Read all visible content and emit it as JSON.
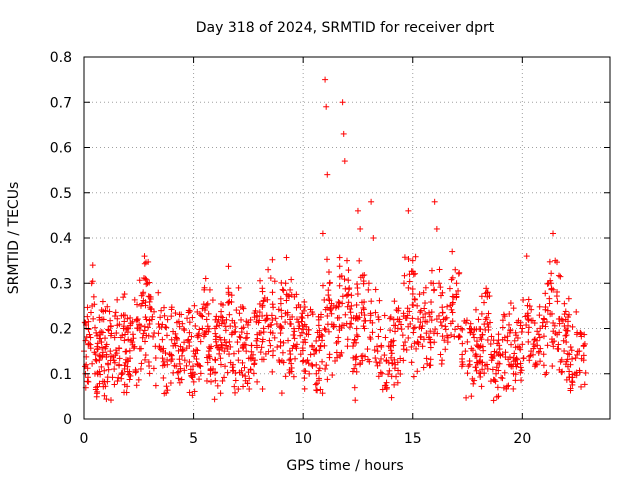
{
  "chart_data": {
    "type": "scatter",
    "title": "Day 318 of 2024, SRMTID for receiver dprt",
    "xlabel": "GPS time / hours",
    "ylabel": "SRMTID / TECUs",
    "xlim": [
      0,
      24
    ],
    "ylim": [
      0,
      0.8
    ],
    "xticks": [
      0,
      5,
      10,
      15,
      20
    ],
    "yticks": [
      0,
      0.1,
      0.2,
      0.3,
      0.4,
      0.5,
      0.6,
      0.7,
      0.8
    ],
    "xtick_labels": [
      "0",
      "5",
      "10",
      "15",
      "20"
    ],
    "ytick_labels": [
      "0",
      "0.1",
      "0.2",
      "0.3",
      "0.4",
      "0.5",
      "0.6",
      "0.7",
      "0.8"
    ],
    "marker": "+",
    "color": "#ff0000",
    "grid": true,
    "series": [
      {
        "name": "SRMTID",
        "approx_points": [
          [
            0.0,
            0.15
          ],
          [
            0.1,
            0.12
          ],
          [
            0.2,
            0.2
          ],
          [
            0.3,
            0.18
          ],
          [
            0.35,
            0.3
          ],
          [
            0.4,
            0.34
          ],
          [
            0.45,
            0.27
          ],
          [
            0.5,
            0.1
          ],
          [
            0.55,
            0.07
          ],
          [
            0.6,
            0.06
          ],
          [
            0.7,
            0.13
          ],
          [
            0.8,
            0.17
          ],
          [
            0.9,
            0.22
          ],
          [
            1.0,
            0.16
          ],
          [
            1.1,
            0.12
          ],
          [
            1.2,
            0.15
          ],
          [
            1.4,
            0.18
          ],
          [
            1.6,
            0.12
          ],
          [
            1.8,
            0.2
          ],
          [
            2.0,
            0.13
          ],
          [
            2.2,
            0.17
          ],
          [
            2.4,
            0.22
          ],
          [
            2.6,
            0.25
          ],
          [
            2.7,
            0.28
          ],
          [
            2.8,
            0.31
          ],
          [
            2.9,
            0.3
          ],
          [
            3.0,
            0.27
          ],
          [
            3.1,
            0.22
          ],
          [
            3.2,
            0.19
          ],
          [
            3.4,
            0.21
          ],
          [
            3.6,
            0.15
          ],
          [
            3.8,
            0.12
          ],
          [
            4.0,
            0.14
          ],
          [
            4.2,
            0.18
          ],
          [
            4.4,
            0.16
          ],
          [
            4.6,
            0.13
          ],
          [
            4.8,
            0.17
          ],
          [
            5.0,
            0.15
          ],
          [
            5.2,
            0.12
          ],
          [
            5.4,
            0.2
          ],
          [
            5.5,
            0.29
          ],
          [
            5.6,
            0.22
          ],
          [
            5.8,
            0.16
          ],
          [
            6.0,
            0.13
          ],
          [
            6.2,
            0.18
          ],
          [
            6.4,
            0.15
          ],
          [
            6.6,
            0.28
          ],
          [
            6.8,
            0.12
          ],
          [
            7.0,
            0.17
          ],
          [
            7.2,
            0.2
          ],
          [
            7.4,
            0.15
          ],
          [
            7.6,
            0.11
          ],
          [
            7.8,
            0.13
          ],
          [
            8.0,
            0.19
          ],
          [
            8.2,
            0.26
          ],
          [
            8.4,
            0.33
          ],
          [
            8.6,
            0.28
          ],
          [
            8.8,
            0.21
          ],
          [
            9.0,
            0.24
          ],
          [
            9.2,
            0.3
          ],
          [
            9.4,
            0.22
          ],
          [
            9.6,
            0.27
          ],
          [
            9.8,
            0.2
          ],
          [
            10.0,
            0.17
          ],
          [
            10.2,
            0.13
          ],
          [
            10.4,
            0.12
          ],
          [
            10.6,
            0.1
          ],
          [
            10.8,
            0.16
          ],
          [
            10.9,
            0.41
          ],
          [
            11.0,
            0.75
          ],
          [
            11.05,
            0.69
          ],
          [
            11.1,
            0.54
          ],
          [
            11.2,
            0.3
          ],
          [
            11.4,
            0.25
          ],
          [
            11.6,
            0.18
          ],
          [
            11.8,
            0.7
          ],
          [
            11.85,
            0.63
          ],
          [
            11.9,
            0.57
          ],
          [
            12.0,
            0.35
          ],
          [
            12.2,
            0.25
          ],
          [
            12.4,
            0.12
          ],
          [
            12.5,
            0.46
          ],
          [
            12.6,
            0.42
          ],
          [
            12.8,
            0.2
          ],
          [
            13.0,
            0.3
          ],
          [
            13.1,
            0.48
          ],
          [
            13.2,
            0.4
          ],
          [
            13.4,
            0.15
          ],
          [
            13.6,
            0.1
          ],
          [
            13.8,
            0.13
          ],
          [
            14.0,
            0.17
          ],
          [
            14.2,
            0.12
          ],
          [
            14.4,
            0.22
          ],
          [
            14.6,
            0.3
          ],
          [
            14.8,
            0.46
          ],
          [
            15.0,
            0.35
          ],
          [
            15.2,
            0.25
          ],
          [
            15.4,
            0.2
          ],
          [
            15.6,
            0.29
          ],
          [
            15.8,
            0.17
          ],
          [
            16.0,
            0.48
          ],
          [
            16.1,
            0.42
          ],
          [
            16.2,
            0.3
          ],
          [
            16.4,
            0.22
          ],
          [
            16.6,
            0.17
          ],
          [
            16.8,
            0.37
          ],
          [
            17.0,
            0.3
          ],
          [
            17.2,
            0.2
          ],
          [
            17.4,
            0.15
          ],
          [
            17.6,
            0.12
          ],
          [
            17.8,
            0.18
          ],
          [
            18.0,
            0.22
          ],
          [
            18.2,
            0.16
          ],
          [
            18.4,
            0.27
          ],
          [
            18.6,
            0.13
          ],
          [
            18.8,
            0.1
          ],
          [
            19.0,
            0.14
          ],
          [
            19.2,
            0.18
          ],
          [
            19.4,
            0.12
          ],
          [
            19.6,
            0.1
          ],
          [
            19.8,
            0.16
          ],
          [
            20.0,
            0.2
          ],
          [
            20.2,
            0.36
          ],
          [
            20.4,
            0.15
          ],
          [
            20.6,
            0.12
          ],
          [
            20.8,
            0.18
          ],
          [
            21.0,
            0.22
          ],
          [
            21.2,
            0.3
          ],
          [
            21.4,
            0.41
          ],
          [
            21.5,
            0.35
          ],
          [
            21.6,
            0.26
          ],
          [
            21.8,
            0.22
          ],
          [
            22.0,
            0.17
          ],
          [
            22.2,
            0.12
          ],
          [
            22.4,
            0.1
          ],
          [
            22.6,
            0.15
          ],
          [
            22.8,
            0.13
          ]
        ]
      }
    ]
  }
}
